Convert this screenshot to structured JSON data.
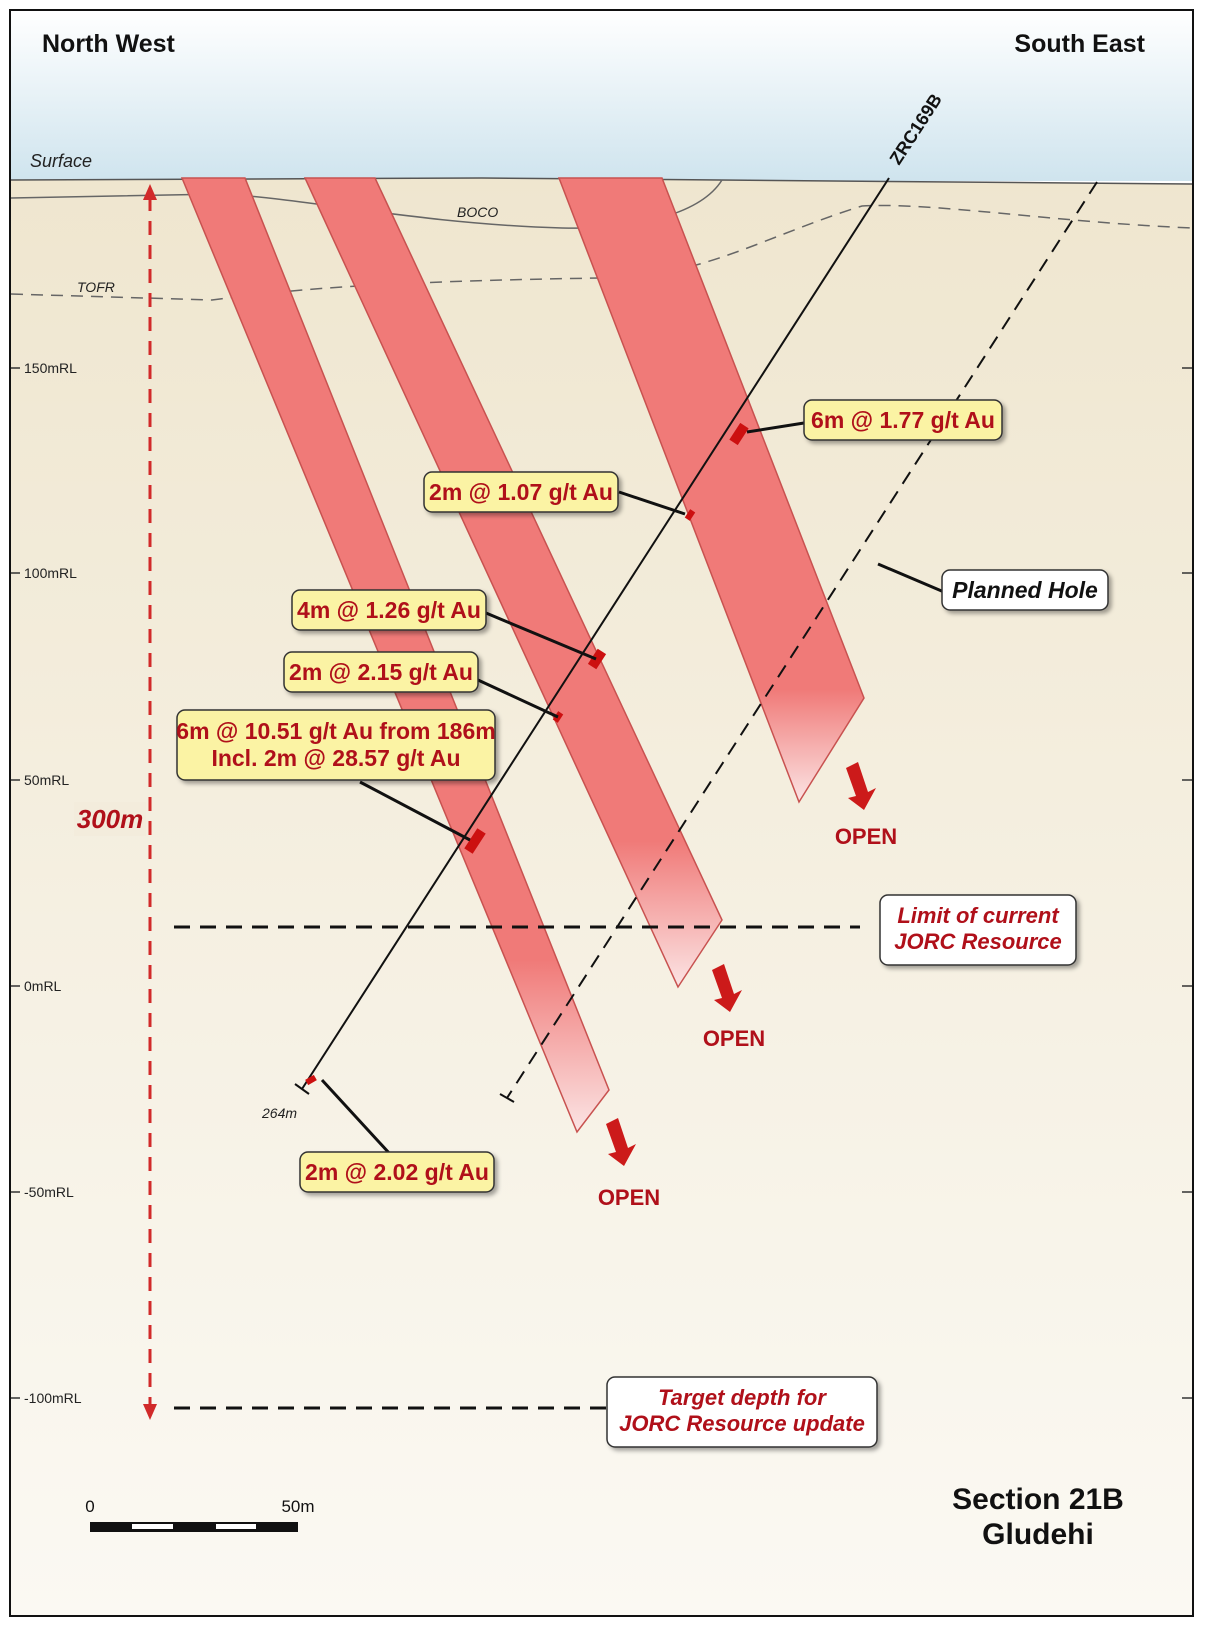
{
  "header": {
    "left": "North West",
    "right": "South East"
  },
  "surface_label": "Surface",
  "horizons": {
    "boco": "BOCO",
    "tofr": "TOFR"
  },
  "hole": {
    "name": "ZRC169B",
    "depth_label": "264m"
  },
  "rl_ticks": [
    "150mRL",
    "100mRL",
    "50mRL",
    "0mRL",
    "-50mRL",
    "-100mRL"
  ],
  "intercepts": [
    {
      "text": "6m @ 1.77 g/t Au"
    },
    {
      "text": "2m @ 1.07 g/t Au"
    },
    {
      "text": "4m @ 1.26 g/t Au"
    },
    {
      "text": "2m @ 2.15 g/t Au"
    },
    {
      "line1": "6m @ 10.51 g/t Au from 186m",
      "line2": "Incl. 2m @ 28.57 g/t Au"
    },
    {
      "text": "2m @ 2.02 g/t Au"
    }
  ],
  "planned_hole_label": "Planned Hole",
  "jorc_limit": {
    "line1": "Limit of current",
    "line2": "JORC Resource"
  },
  "target_depth": {
    "line1": "Target depth for",
    "line2": "JORC Resource update"
  },
  "open_label": "OPEN",
  "depth_span_label": "300m",
  "scale_bar": {
    "start": "0",
    "end": "50m"
  },
  "section": {
    "line1": "Section 21B",
    "line2": "Gludehi"
  },
  "colors": {
    "lode_fill": "#f07a78",
    "lode_edge": "#c85250",
    "accent_red": "#b0101a",
    "callout_yellow": "#fbf3a4",
    "sky": "#cfe4ee",
    "ground": "#f1ead8"
  }
}
